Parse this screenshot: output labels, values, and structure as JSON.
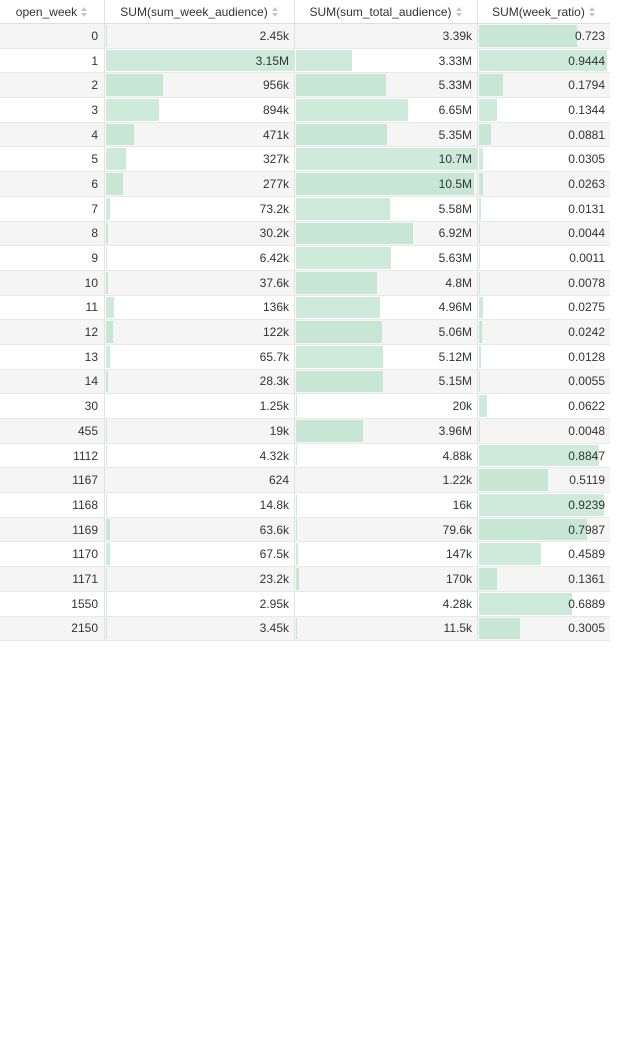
{
  "columns": [
    {
      "label": "open_week"
    },
    {
      "label": "SUM(sum_week_audience)"
    },
    {
      "label": "SUM(sum_total_audience)"
    },
    {
      "label": "SUM(week_ratio)"
    }
  ],
  "bar_color": "#cdeadb",
  "rows": [
    {
      "open_week": "0",
      "week_audience": "2.45k",
      "total_audience": "3.39k",
      "week_ratio": "0.723",
      "f1": 0.0008,
      "f2": 0.0003,
      "f3": 0.7477
    },
    {
      "open_week": "1",
      "week_audience": "3.15M",
      "total_audience": "3.33M",
      "week_ratio": "0.9444",
      "f1": 1.0,
      "f2": 0.31,
      "f3": 0.9766
    },
    {
      "open_week": "2",
      "week_audience": "956k",
      "total_audience": "5.33M",
      "week_ratio": "0.1794",
      "f1": 0.3035,
      "f2": 0.4981,
      "f3": 0.1855
    },
    {
      "open_week": "3",
      "week_audience": "894k",
      "total_audience": "6.65M",
      "week_ratio": "0.1344",
      "f1": 0.2838,
      "f2": 0.6215,
      "f3": 0.139
    },
    {
      "open_week": "4",
      "week_audience": "471k",
      "total_audience": "5.35M",
      "week_ratio": "0.0881",
      "f1": 0.1495,
      "f2": 0.5,
      "f3": 0.0911
    },
    {
      "open_week": "5",
      "week_audience": "327k",
      "total_audience": "10.7M",
      "week_ratio": "0.0305",
      "f1": 0.1038,
      "f2": 1.0,
      "f3": 0.0315
    },
    {
      "open_week": "6",
      "week_audience": "277k",
      "total_audience": "10.5M",
      "week_ratio": "0.0263",
      "f1": 0.0879,
      "f2": 0.9813,
      "f3": 0.0272
    },
    {
      "open_week": "7",
      "week_audience": "73.2k",
      "total_audience": "5.58M",
      "week_ratio": "0.0131",
      "f1": 0.0232,
      "f2": 0.5215,
      "f3": 0.0135
    },
    {
      "open_week": "8",
      "week_audience": "30.2k",
      "total_audience": "6.92M",
      "week_ratio": "0.0044",
      "f1": 0.0096,
      "f2": 0.6467,
      "f3": 0.0045
    },
    {
      "open_week": "9",
      "week_audience": "6.42k",
      "total_audience": "5.63M",
      "week_ratio": "0.0011",
      "f1": 0.002,
      "f2": 0.5262,
      "f3": 0.0011
    },
    {
      "open_week": "10",
      "week_audience": "37.6k",
      "total_audience": "4.8M",
      "week_ratio": "0.0078",
      "f1": 0.0119,
      "f2": 0.4486,
      "f3": 0.0081
    },
    {
      "open_week": "11",
      "week_audience": "136k",
      "total_audience": "4.96M",
      "week_ratio": "0.0275",
      "f1": 0.0432,
      "f2": 0.4636,
      "f3": 0.0284
    },
    {
      "open_week": "12",
      "week_audience": "122k",
      "total_audience": "5.06M",
      "week_ratio": "0.0242",
      "f1": 0.0387,
      "f2": 0.4729,
      "f3": 0.025
    },
    {
      "open_week": "13",
      "week_audience": "65.7k",
      "total_audience": "5.12M",
      "week_ratio": "0.0128",
      "f1": 0.0209,
      "f2": 0.4785,
      "f3": 0.0132
    },
    {
      "open_week": "14",
      "week_audience": "28.3k",
      "total_audience": "5.15M",
      "week_ratio": "0.0055",
      "f1": 0.009,
      "f2": 0.4813,
      "f3": 0.0057
    },
    {
      "open_week": "30",
      "week_audience": "1.25k",
      "total_audience": "20k",
      "week_ratio": "0.0622",
      "f1": 0.0004,
      "f2": 0.0019,
      "f3": 0.0643
    },
    {
      "open_week": "455",
      "week_audience": "19k",
      "total_audience": "3.96M",
      "week_ratio": "0.0048",
      "f1": 0.006,
      "f2": 0.3701,
      "f3": 0.005
    },
    {
      "open_week": "1112",
      "week_audience": "4.32k",
      "total_audience": "4.88k",
      "week_ratio": "0.8847",
      "f1": 0.0014,
      "f2": 0.0005,
      "f3": 0.9149
    },
    {
      "open_week": "1167",
      "week_audience": "624",
      "total_audience": "1.22k",
      "week_ratio": "0.5119",
      "f1": 0.0002,
      "f2": 0.0001,
      "f3": 0.5294
    },
    {
      "open_week": "1168",
      "week_audience": "14.8k",
      "total_audience": "16k",
      "week_ratio": "0.9239",
      "f1": 0.0047,
      "f2": 0.0015,
      "f3": 0.9554
    },
    {
      "open_week": "1169",
      "week_audience": "63.6k",
      "total_audience": "79.6k",
      "week_ratio": "0.7987",
      "f1": 0.0202,
      "f2": 0.0074,
      "f3": 0.826
    },
    {
      "open_week": "1170",
      "week_audience": "67.5k",
      "total_audience": "147k",
      "week_ratio": "0.4589",
      "f1": 0.0214,
      "f2": 0.0137,
      "f3": 0.4746
    },
    {
      "open_week": "1171",
      "week_audience": "23.2k",
      "total_audience": "170k",
      "week_ratio": "0.1361",
      "f1": 0.0074,
      "f2": 0.0159,
      "f3": 0.1407
    },
    {
      "open_week": "1550",
      "week_audience": "2.95k",
      "total_audience": "4.28k",
      "week_ratio": "0.6889",
      "f1": 0.0009,
      "f2": 0.0004,
      "f3": 0.7124
    },
    {
      "open_week": "2150",
      "week_audience": "3.45k",
      "total_audience": "11.5k",
      "week_ratio": "0.3005",
      "f1": 0.0011,
      "f2": 0.0011,
      "f3": 0.3108
    }
  ]
}
